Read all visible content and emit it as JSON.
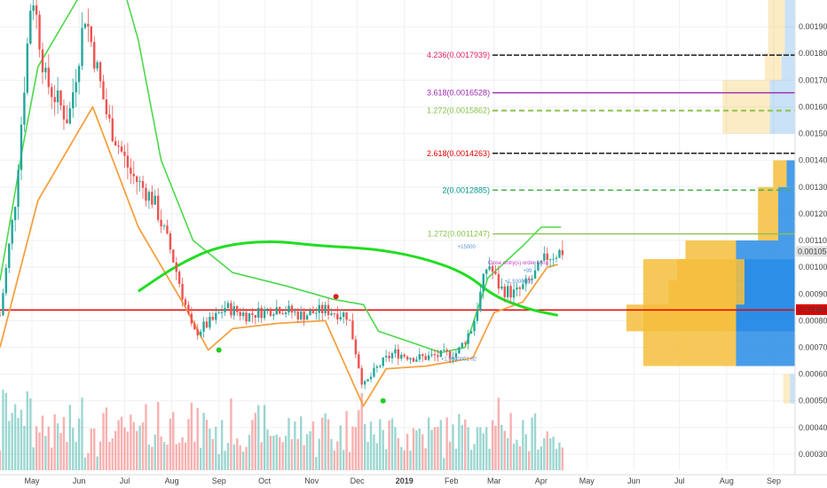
{
  "chart_data": {
    "type": "candlestick",
    "x_axis": {
      "start": "2018-04-10",
      "end": "2019-09-15",
      "tick_labels": [
        {
          "date": "2018-05-01",
          "label": "May"
        },
        {
          "date": "2018-06-01",
          "label": "Jun"
        },
        {
          "date": "2018-07-01",
          "label": "Jul"
        },
        {
          "date": "2018-08-01",
          "label": "Aug"
        },
        {
          "date": "2018-09-01",
          "label": "Sep"
        },
        {
          "date": "2018-10-01",
          "label": "Oct"
        },
        {
          "date": "2018-11-01",
          "label": "Nov"
        },
        {
          "date": "2018-12-01",
          "label": "Dec"
        },
        {
          "date": "2019-01-01",
          "label": "2019"
        },
        {
          "date": "2019-02-01",
          "label": "Feb"
        },
        {
          "date": "2019-03-01",
          "label": "Mar"
        },
        {
          "date": "2019-04-01",
          "label": "Apr"
        },
        {
          "date": "2019-05-01",
          "label": "May"
        },
        {
          "date": "2019-06-01",
          "label": "Jun"
        },
        {
          "date": "2019-07-01",
          "label": "Jul"
        },
        {
          "date": "2019-08-01",
          "label": "Aug"
        },
        {
          "date": "2019-09-01",
          "label": "Sep"
        }
      ]
    },
    "y_axis": {
      "range": [
        0.00024,
        0.002
      ],
      "tick_values": [
        0.0003,
        0.0004,
        0.0005,
        0.0006,
        0.0007,
        0.0008,
        0.0009,
        0.001,
        0.0011,
        0.0012,
        0.0013,
        0.0014,
        0.0015,
        0.0016,
        0.0017,
        0.0018,
        0.0019
      ],
      "tick_labels": [
        "0.0003000",
        "0.0004000",
        "0.0005000",
        "0.0006000",
        "0.0007000",
        "0.0008000",
        "0.0009000",
        "0.0010000",
        "0.0011000",
        "0.0012000",
        "0.0013000",
        "0.0014000",
        "0.0015000",
        "0.0016000",
        "0.0017000",
        "0.0018000",
        "0.0019000"
      ]
    },
    "grid": true,
    "price_anchors": [
      {
        "date": "2018-04-10",
        "price": 0.00082
      },
      {
        "date": "2018-04-20",
        "price": 0.00125
      },
      {
        "date": "2018-05-01",
        "price": 0.00205
      },
      {
        "date": "2018-05-10",
        "price": 0.0017
      },
      {
        "date": "2018-05-25",
        "price": 0.00155
      },
      {
        "date": "2018-06-05",
        "price": 0.00195
      },
      {
        "date": "2018-06-20",
        "price": 0.00155
      },
      {
        "date": "2018-07-05",
        "price": 0.00135
      },
      {
        "date": "2018-07-20",
        "price": 0.00125
      },
      {
        "date": "2018-08-01",
        "price": 0.00105
      },
      {
        "date": "2018-08-15",
        "price": 0.00075
      },
      {
        "date": "2018-08-28",
        "price": 0.0008
      },
      {
        "date": "2018-09-05",
        "price": 0.00085
      },
      {
        "date": "2018-09-20",
        "price": 0.00082
      },
      {
        "date": "2018-10-10",
        "price": 0.00085
      },
      {
        "date": "2018-10-25",
        "price": 0.00082
      },
      {
        "date": "2018-11-10",
        "price": 0.00084
      },
      {
        "date": "2018-11-25",
        "price": 0.00082
      },
      {
        "date": "2018-12-05",
        "price": 0.00055
      },
      {
        "date": "2018-12-15",
        "price": 0.00063
      },
      {
        "date": "2018-12-25",
        "price": 0.00068
      },
      {
        "date": "2019-01-10",
        "price": 0.00066
      },
      {
        "date": "2019-01-25",
        "price": 0.00067
      },
      {
        "date": "2019-02-05",
        "price": 0.00068
      },
      {
        "date": "2019-02-15",
        "price": 0.00078
      },
      {
        "date": "2019-02-25",
        "price": 0.00102
      },
      {
        "date": "2019-03-05",
        "price": 0.00092
      },
      {
        "date": "2019-03-15",
        "price": 0.0009
      },
      {
        "date": "2019-03-25",
        "price": 0.00095
      },
      {
        "date": "2019-04-05",
        "price": 0.00104
      },
      {
        "date": "2019-04-15",
        "price": 0.00106
      }
    ],
    "orange_line": [
      {
        "date": "2018-04-10",
        "value": 0.0007
      },
      {
        "date": "2018-05-05",
        "value": 0.00125
      },
      {
        "date": "2018-06-10",
        "value": 0.0016
      },
      {
        "date": "2018-07-10",
        "value": 0.00115
      },
      {
        "date": "2018-08-10",
        "value": 0.00085
      },
      {
        "date": "2018-08-25",
        "value": 0.00069
      },
      {
        "date": "2018-09-10",
        "value": 0.00077
      },
      {
        "date": "2018-10-10",
        "value": 0.00079
      },
      {
        "date": "2018-11-10",
        "value": 0.0008
      },
      {
        "date": "2018-12-05",
        "value": 0.00048
      },
      {
        "date": "2018-12-20",
        "value": 0.00062
      },
      {
        "date": "2019-01-15",
        "value": 0.00063
      },
      {
        "date": "2019-02-15",
        "value": 0.00066
      },
      {
        "date": "2019-03-01",
        "value": 0.00083
      },
      {
        "date": "2019-03-20",
        "value": 0.00087
      },
      {
        "date": "2019-04-05",
        "value": 0.001
      },
      {
        "date": "2019-04-12",
        "value": 0.00101
      }
    ],
    "green_stop_line": [
      {
        "date": "2018-04-10",
        "value": 0.00095
      },
      {
        "date": "2018-04-25",
        "value": 0.00145
      },
      {
        "date": "2018-05-05",
        "value": 0.00175
      },
      {
        "date": "2018-06-05",
        "value": 0.00205
      },
      {
        "date": "2018-06-25",
        "value": 0.00215
      },
      {
        "date": "2018-07-10",
        "value": 0.00185
      },
      {
        "date": "2018-07-25",
        "value": 0.0014
      },
      {
        "date": "2018-08-15",
        "value": 0.0011
      },
      {
        "date": "2018-09-10",
        "value": 0.00098
      },
      {
        "date": "2018-10-15",
        "value": 0.00093
      },
      {
        "date": "2018-11-15",
        "value": 0.00088
      },
      {
        "date": "2018-12-05",
        "value": 0.00086
      },
      {
        "date": "2018-12-15",
        "value": 0.00076
      },
      {
        "date": "2019-01-05",
        "value": 0.00072
      },
      {
        "date": "2019-01-25",
        "value": 0.00068
      },
      {
        "date": "2019-02-10",
        "value": 0.0007
      },
      {
        "date": "2019-02-25",
        "value": 0.00096
      },
      {
        "date": "2019-03-20",
        "value": 0.00108
      },
      {
        "date": "2019-04-01",
        "value": 0.00115
      },
      {
        "date": "2019-04-14",
        "value": 0.00115
      }
    ],
    "green_ma_curve": [
      {
        "date": "2018-07-10",
        "value": 0.00091
      },
      {
        "date": "2018-08-05",
        "value": 0.00101
      },
      {
        "date": "2018-09-01",
        "value": 0.00108
      },
      {
        "date": "2018-10-05",
        "value": 0.0011
      },
      {
        "date": "2018-11-05",
        "value": 0.00108
      },
      {
        "date": "2018-12-10",
        "value": 0.00107
      },
      {
        "date": "2019-01-10",
        "value": 0.00104
      },
      {
        "date": "2019-02-10",
        "value": 0.00098
      },
      {
        "date": "2019-03-01",
        "value": 0.00089
      },
      {
        "date": "2019-03-25",
        "value": 0.00084
      },
      {
        "date": "2019-04-12",
        "value": 0.00082
      }
    ],
    "volume_bars_max": 1.0,
    "signal_markers": [
      {
        "date": "2018-09-01",
        "price": 0.00069,
        "color": "#22cc22"
      },
      {
        "date": "2018-11-17",
        "price": 0.00089,
        "color": "#dd2222"
      },
      {
        "date": "2018-12-18",
        "price": 0.0005,
        "color": "#22cc22"
      }
    ],
    "horizontal_levels": [
      {
        "value": 0.00084,
        "color": "#e60000",
        "style": "solid",
        "width": 1.5
      }
    ],
    "fib_levels": [
      {
        "label": "4.236(0.0017939)",
        "value": 0.0017939,
        "color": "#e91e63",
        "line_color": "#1a1a1a",
        "dash": "6,2",
        "width": 1.5
      },
      {
        "label": "3.618(0.0016528)",
        "value": 0.0016528,
        "color": "#9c27b0",
        "line_color": "#9c27b0",
        "dash": "",
        "width": 1.3
      },
      {
        "label": "1.272(0.0015862)",
        "value": 0.0015862,
        "color": "#8bc34a",
        "line_color": "#8bc34a",
        "dash": "6,4",
        "width": 2
      },
      {
        "label": "2.618(0.0014263)",
        "value": 0.0014263,
        "color": "#e00000",
        "line_color": "#1a1a1a",
        "dash": "6,2",
        "width": 1.5
      },
      {
        "label": "2(0.0012885)",
        "value": 0.0012885,
        "color": "#009688",
        "line_color": "#4caf50",
        "dash": "6,4",
        "width": 1.5
      },
      {
        "label": "1.272(0.0011247)",
        "value": 0.0011247,
        "color": "#8bc34a",
        "line_color": "#8bc34a",
        "dash": "",
        "width": 1.3
      }
    ],
    "price_tags": [
      {
        "label": "0.0010592",
        "value": 0.0010592,
        "bg": "#e0e0e0",
        "fg": "#333333"
      },
      {
        "label": "0.0008411",
        "value": 0.0008411,
        "bg": "#e00000",
        "fg": "#ffffff"
      }
    ],
    "volume_profile": [
      {
        "price_low": 0.00063,
        "price_high": 0.00103,
        "up": 0.55,
        "down": 0.35
      },
      {
        "price_low": 0.00076,
        "price_high": 0.00086,
        "up": 0.65,
        "down": 0.35
      },
      {
        "price_low": 0.00086,
        "price_high": 0.00095,
        "up": 0.45,
        "down": 0.3
      },
      {
        "price_low": 0.00095,
        "price_high": 0.00103,
        "up": 0.4,
        "down": 0.3
      },
      {
        "price_low": 0.00103,
        "price_high": 0.0011,
        "up": 0.3,
        "down": 0.35
      },
      {
        "price_low": 0.0011,
        "price_high": 0.0013,
        "up": 0.12,
        "down": 0.1
      },
      {
        "price_low": 0.0013,
        "price_high": 0.0014,
        "up": 0.08,
        "down": 0.05
      },
      {
        "price_low": 0.0015,
        "price_high": 0.0017,
        "up": 0.28,
        "down": 0.15
      },
      {
        "price_low": 0.0017,
        "price_high": 0.0018,
        "up": 0.1,
        "down": 0.08
      },
      {
        "price_low": 0.0018,
        "price_high": 0.002,
        "up": 0.1,
        "down": 0.06
      },
      {
        "price_low": 0.00055,
        "price_high": 0.0006,
        "up": 0.04,
        "down": 0.03
      },
      {
        "price_low": 0.00049,
        "price_high": 0.00055,
        "up": 0.04,
        "down": 0.03
      }
    ],
    "annotations": [
      {
        "text": "Close entry(s) order Long",
        "date": "2019-02-25",
        "price": 0.00101,
        "color": "#c23bc2"
      },
      {
        "text": "+99",
        "date": "2019-03-20",
        "price": 0.00098,
        "color": "#5a8fd6"
      },
      {
        "text": "+15000",
        "date": "2019-02-05",
        "price": 0.00107,
        "color": "#5a8fd6"
      },
      {
        "text": "+1.5000000",
        "date": "2019-03-08",
        "price": 0.00094,
        "color": "#5a8fd6"
      },
      {
        "text": "+1.5000001.02",
        "date": "2019-01-25",
        "price": 0.00065,
        "color": "#5a8fd6"
      }
    ]
  }
}
